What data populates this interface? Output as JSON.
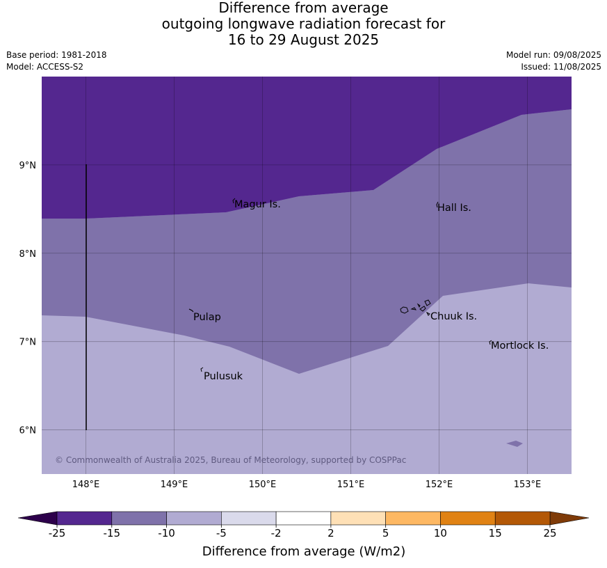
{
  "title": {
    "line1": "Difference from average",
    "line2": "outgoing longwave radiation forecast for",
    "line3": "16 to 29 August 2025"
  },
  "meta": {
    "base_period": "Base period: 1981-2018",
    "model": "Model: ACCESS-S2",
    "model_run": "Model run: 09/08/2025",
    "issued": "Issued: 11/08/2025"
  },
  "map": {
    "lon_range": [
      147.5,
      153.5
    ],
    "lat_range": [
      5.5,
      10.0
    ],
    "lon_ticks": [
      148,
      149,
      150,
      151,
      152,
      153
    ],
    "lon_tick_labels": [
      "148°E",
      "149°E",
      "150°E",
      "151°E",
      "152°E",
      "153°E"
    ],
    "lat_ticks": [
      6,
      7,
      8,
      9
    ],
    "lat_tick_labels": [
      "6°N",
      "7°N",
      "8°N",
      "9°N"
    ],
    "places": [
      {
        "name": "Magur Is.",
        "lon": 149.67,
        "lat": 8.55
      },
      {
        "name": "Hall Is.",
        "lon": 151.97,
        "lat": 8.5
      },
      {
        "name": "Pulap",
        "lon": 149.18,
        "lat": 7.27
      },
      {
        "name": "Chuuk Is.",
        "lon": 151.88,
        "lat": 7.28
      },
      {
        "name": "Mortlock Is.",
        "lon": 152.58,
        "lat": 6.95
      },
      {
        "name": "Pulusuk",
        "lon": 149.32,
        "lat": 6.62
      }
    ],
    "copyright": "© Commonwealth of Australia 2025, Bureau of Meteorology, supported by COSPPac",
    "band_colors": {
      "lt_-15": "#54278f",
      "-15_-10": "#7f72aa",
      "-10_-5": "#b1abd2",
      "small_patch": "#7f72aa"
    }
  },
  "colorbar": {
    "label": "Difference from average (W/m2)",
    "ticks": [
      "-25",
      "-15",
      "-10",
      "-5",
      "-2",
      "2",
      "5",
      "10",
      "15",
      "25"
    ],
    "colors": [
      "#54278f",
      "#7f72aa",
      "#b1abd2",
      "#dadaeb",
      "#ffffff",
      "#fee0b6",
      "#fdb863",
      "#e08214",
      "#b35806"
    ],
    "extend_low_color": "#2d004b",
    "extend_high_color": "#7f3b08"
  }
}
